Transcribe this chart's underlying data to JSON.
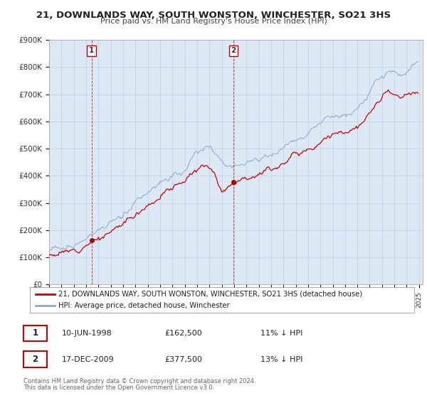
{
  "title": "21, DOWNLANDS WAY, SOUTH WONSTON, WINCHESTER, SO21 3HS",
  "subtitle": "Price paid vs. HM Land Registry's House Price Index (HPI)",
  "ylim": [
    0,
    900000
  ],
  "xlim_start": 1995.0,
  "xlim_end": 2025.3,
  "background_color": "#ffffff",
  "plot_bg_color": "#dde8f5",
  "grid_color": "#c8d8e8",
  "sale1_date": 1998.44,
  "sale1_price": 162500,
  "sale1_label": "1",
  "sale1_date_str": "10-JUN-1998",
  "sale1_price_str": "£162,500",
  "sale1_note": "11% ↓ HPI",
  "sale2_date": 2009.96,
  "sale2_price": 377500,
  "sale2_label": "2",
  "sale2_date_str": "17-DEC-2009",
  "sale2_price_str": "£377,500",
  "sale2_note": "13% ↓ HPI",
  "legend_line1": "21, DOWNLANDS WAY, SOUTH WONSTON, WINCHESTER, SO21 3HS (detached house)",
  "legend_line2": "HPI: Average price, detached house, Winchester",
  "footer1": "Contains HM Land Registry data © Crown copyright and database right 2024.",
  "footer2": "This data is licensed under the Open Government Licence v3.0.",
  "red_color": "#cc0000",
  "blue_color": "#88aacc",
  "marker_color": "#aa0000"
}
